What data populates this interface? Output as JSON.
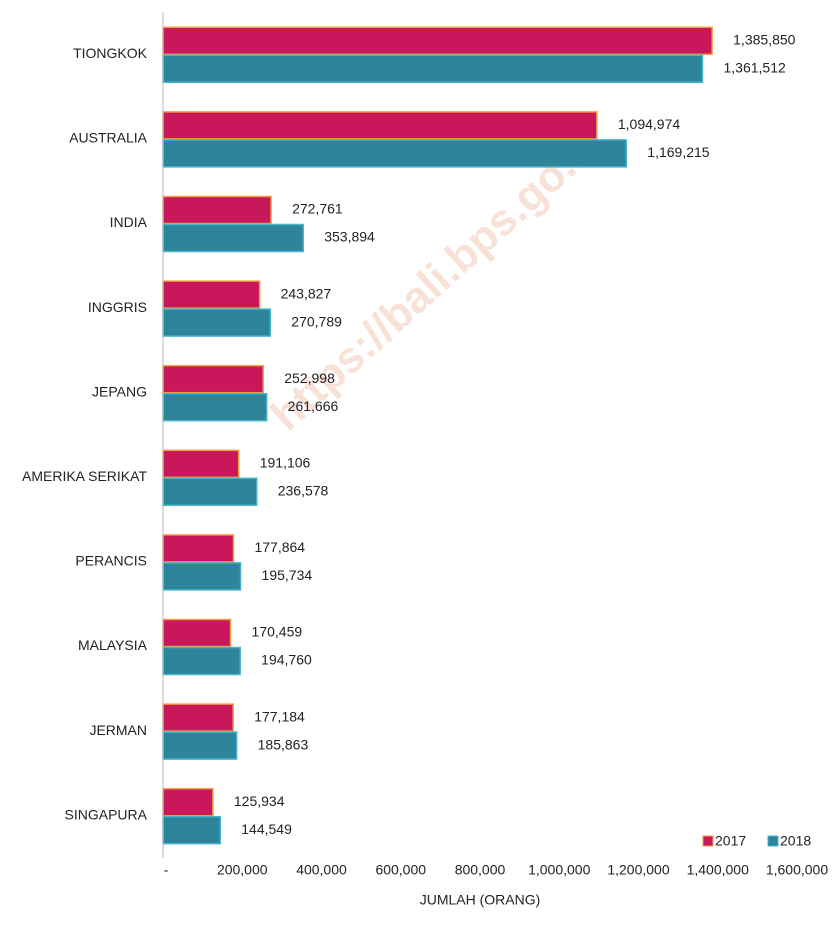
{
  "chart_data": {
    "type": "bar",
    "orientation": "horizontal",
    "watermark": "https://bali.bps.go.id",
    "x_label": "JUMLAH (ORANG)",
    "categories": [
      "TIONGKOK",
      "AUSTRALIA",
      "INDIA",
      "INGGRIS",
      "JEPANG",
      "AMERIKA SERIKAT",
      "PERANCIS",
      "MALAYSIA",
      "JERMAN",
      "SINGAPURA"
    ],
    "series": [
      {
        "name": "2017",
        "color": "#c8175a",
        "stroke": "#f0a040",
        "values": [
          1385850,
          1094974,
          272761,
          243827,
          252998,
          191106,
          177864,
          170459,
          177184,
          125934
        ],
        "value_labels": [
          "1,385,850",
          "1,094,974",
          "272,761",
          "243,827",
          "252,998",
          "191,106",
          "177,864",
          "170,459",
          "177,184",
          "125,934"
        ]
      },
      {
        "name": "2018",
        "color": "#2e8499",
        "stroke": "#46b4cc",
        "values": [
          1361512,
          1169215,
          353894,
          270789,
          261666,
          236578,
          195734,
          194760,
          185863,
          144549
        ],
        "value_labels": [
          "1,361,512",
          "1,169,215",
          "353,894",
          "270,789",
          "261,666",
          "236,578",
          "195,734",
          "194,760",
          "185,863",
          "144,549"
        ]
      }
    ],
    "xlim": [
      0,
      1600000
    ],
    "xticks": [
      {
        "value": 0,
        "label": "-"
      },
      {
        "value": 200000,
        "label": "200,000"
      },
      {
        "value": 400000,
        "label": "400,000"
      },
      {
        "value": 600000,
        "label": "600,000"
      },
      {
        "value": 800000,
        "label": "800,000"
      },
      {
        "value": 1000000,
        "label": "1,000,000"
      },
      {
        "value": 1200000,
        "label": "1,200,000"
      },
      {
        "value": 1400000,
        "label": "1,400,000"
      },
      {
        "value": 1600000,
        "label": "1,600,000"
      }
    ],
    "grid": false,
    "legend": "bottom-right"
  }
}
